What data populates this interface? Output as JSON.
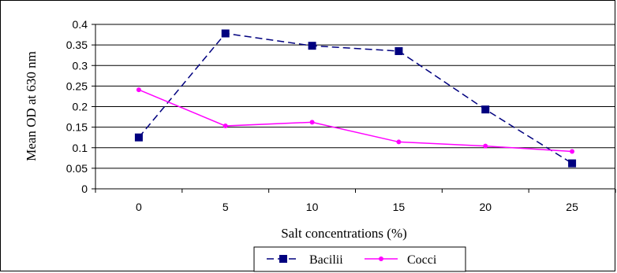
{
  "chart_data": {
    "type": "line",
    "title": "",
    "xlabel": "Salt concentrations (%)",
    "ylabel": "Mean OD at 630 nm",
    "categories": [
      "0",
      "5",
      "10",
      "15",
      "20",
      "25"
    ],
    "y_ticks": [
      "0",
      "0.05",
      "0.1",
      "0.15",
      "0.2",
      "0.25",
      "0.3",
      "0.35",
      "0.4"
    ],
    "ylim": [
      0,
      0.4
    ],
    "grid": "horizontal",
    "legend_position": "bottom",
    "series": [
      {
        "name": "Bacilii",
        "values": [
          0.125,
          0.378,
          0.348,
          0.335,
          0.193,
          0.062
        ],
        "color": "#00007f",
        "marker": "square",
        "line": "dashed"
      },
      {
        "name": "Cocci",
        "values": [
          0.241,
          0.153,
          0.162,
          0.114,
          0.104,
          0.091
        ],
        "color": "#ff00ff",
        "marker": "circle",
        "line": "solid"
      }
    ]
  }
}
